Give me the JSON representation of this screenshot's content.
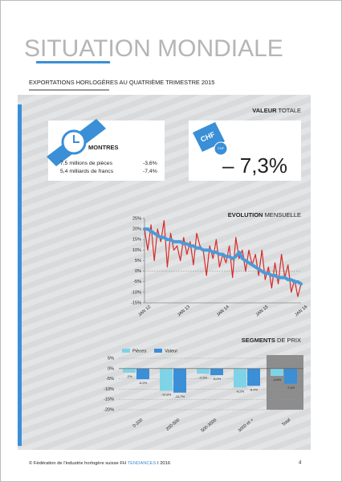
{
  "header": {
    "title": "SITUATION MONDIALE",
    "subtitle": "EXPORTATIONS HORLOGÈRES AU QUATRIÈME TRIMESTRE 2015"
  },
  "total": {
    "label_bold": "VALEUR",
    "label": "TOTALE",
    "currency": "CHF",
    "currency_small": "CHF",
    "value": "– 7,3%"
  },
  "watches": {
    "title": "MONTRES",
    "rows": [
      [
        "7,5 millions de pièces",
        "-3,6%"
      ],
      [
        "5,4 milliards de francs",
        "-7,4%"
      ]
    ]
  },
  "evolution": {
    "label_bold": "EVOLUTION",
    "label": "MENSUELLE"
  },
  "footer": {
    "left": "© Fédération de l'industrie horlogère suisse FH",
    "brand": "TENDANCES",
    "year": "I 2016",
    "page": "4"
  },
  "chart_data": [
    {
      "type": "line",
      "categories": [
        "JAN 12",
        null,
        null,
        null,
        null,
        null,
        null,
        null,
        null,
        null,
        null,
        null,
        "JAN 13",
        null,
        null,
        null,
        null,
        null,
        null,
        null,
        null,
        null,
        null,
        null,
        "JAN 14",
        null,
        null,
        null,
        null,
        null,
        null,
        null,
        null,
        null,
        null,
        null,
        "JAN 15",
        null,
        null,
        null,
        null,
        null,
        null,
        null,
        null,
        null,
        null,
        null,
        "JAN 16"
      ],
      "series": [
        {
          "color": "#d62b2b",
          "values": [
            20,
            10,
            22,
            5,
            20,
            14,
            24,
            2,
            18,
            10,
            12,
            5,
            16,
            8,
            14,
            3,
            18,
            12,
            10,
            -2,
            12,
            6,
            15,
            2,
            8,
            4,
            12,
            -3,
            16,
            6,
            10,
            0,
            10,
            3,
            8,
            -2,
            10,
            -4,
            2,
            -8,
            4,
            -6,
            8,
            -3,
            3,
            -10,
            -4,
            -12,
            -6
          ]
        },
        {
          "color": "#4a9ad8",
          "values": [
            20,
            20,
            19,
            18,
            17,
            16,
            16,
            15,
            15,
            14,
            14,
            14,
            13,
            13,
            12,
            12,
            11,
            11,
            10,
            10,
            10,
            9,
            9,
            8,
            8,
            7,
            7,
            6,
            7,
            9,
            6,
            5,
            4,
            3,
            2,
            1,
            0,
            -1,
            -1,
            -2,
            -2,
            -3,
            -3,
            -3,
            -4,
            -4,
            -5,
            -5,
            -6
          ]
        }
      ],
      "ylim": [
        -15,
        25
      ],
      "yticks": [
        {
          "value": 25,
          "label": "25%"
        },
        {
          "value": 20,
          "label": "20%"
        },
        {
          "value": 15,
          "label": "15%"
        },
        {
          "value": 10,
          "label": "10%"
        },
        {
          "value": 5,
          "label": "5%"
        },
        {
          "value": 0,
          "label": "0%"
        },
        {
          "value": -5,
          "label": "-5%"
        },
        {
          "value": -10,
          "label": "-10%"
        },
        {
          "value": -15,
          "label": "-15%"
        }
      ]
    },
    {
      "type": "bar",
      "title": "SEGMENTS DE PRIX",
      "title_bold": "SEGMENTS",
      "title_rest": "DE PRIX",
      "categories": [
        "0-200",
        "200-500",
        "500-3000",
        "3000 et +",
        "Total"
      ],
      "series": [
        {
          "name": "Pièces",
          "color": "#7fd3e6",
          "values": [
            -2,
            -10.8,
            -2.5,
            -9.2,
            -3.6
          ],
          "value_labels": [
            "-2%",
            "-10,8%",
            "-2,5%",
            "-9,2%",
            "-3,6%"
          ]
        },
        {
          "name": "Valeur",
          "color": "#3a8fd6",
          "values": [
            -5.2,
            -11.7,
            -3.2,
            -8.4,
            -7.4
          ],
          "value_labels": [
            "-5,2%",
            "-11,7%",
            "-3,2%",
            "-8,4%",
            "-7,4%"
          ]
        }
      ],
      "ylim": [
        -20,
        5
      ],
      "yticks": [
        {
          "value": 5,
          "label": "5%"
        },
        {
          "value": 0,
          "label": "0%"
        },
        {
          "value": -5,
          "label": "-5%"
        },
        {
          "value": -10,
          "label": "-10%"
        },
        {
          "value": -15,
          "label": "-15%"
        },
        {
          "value": -20,
          "label": "-20%"
        }
      ]
    }
  ]
}
